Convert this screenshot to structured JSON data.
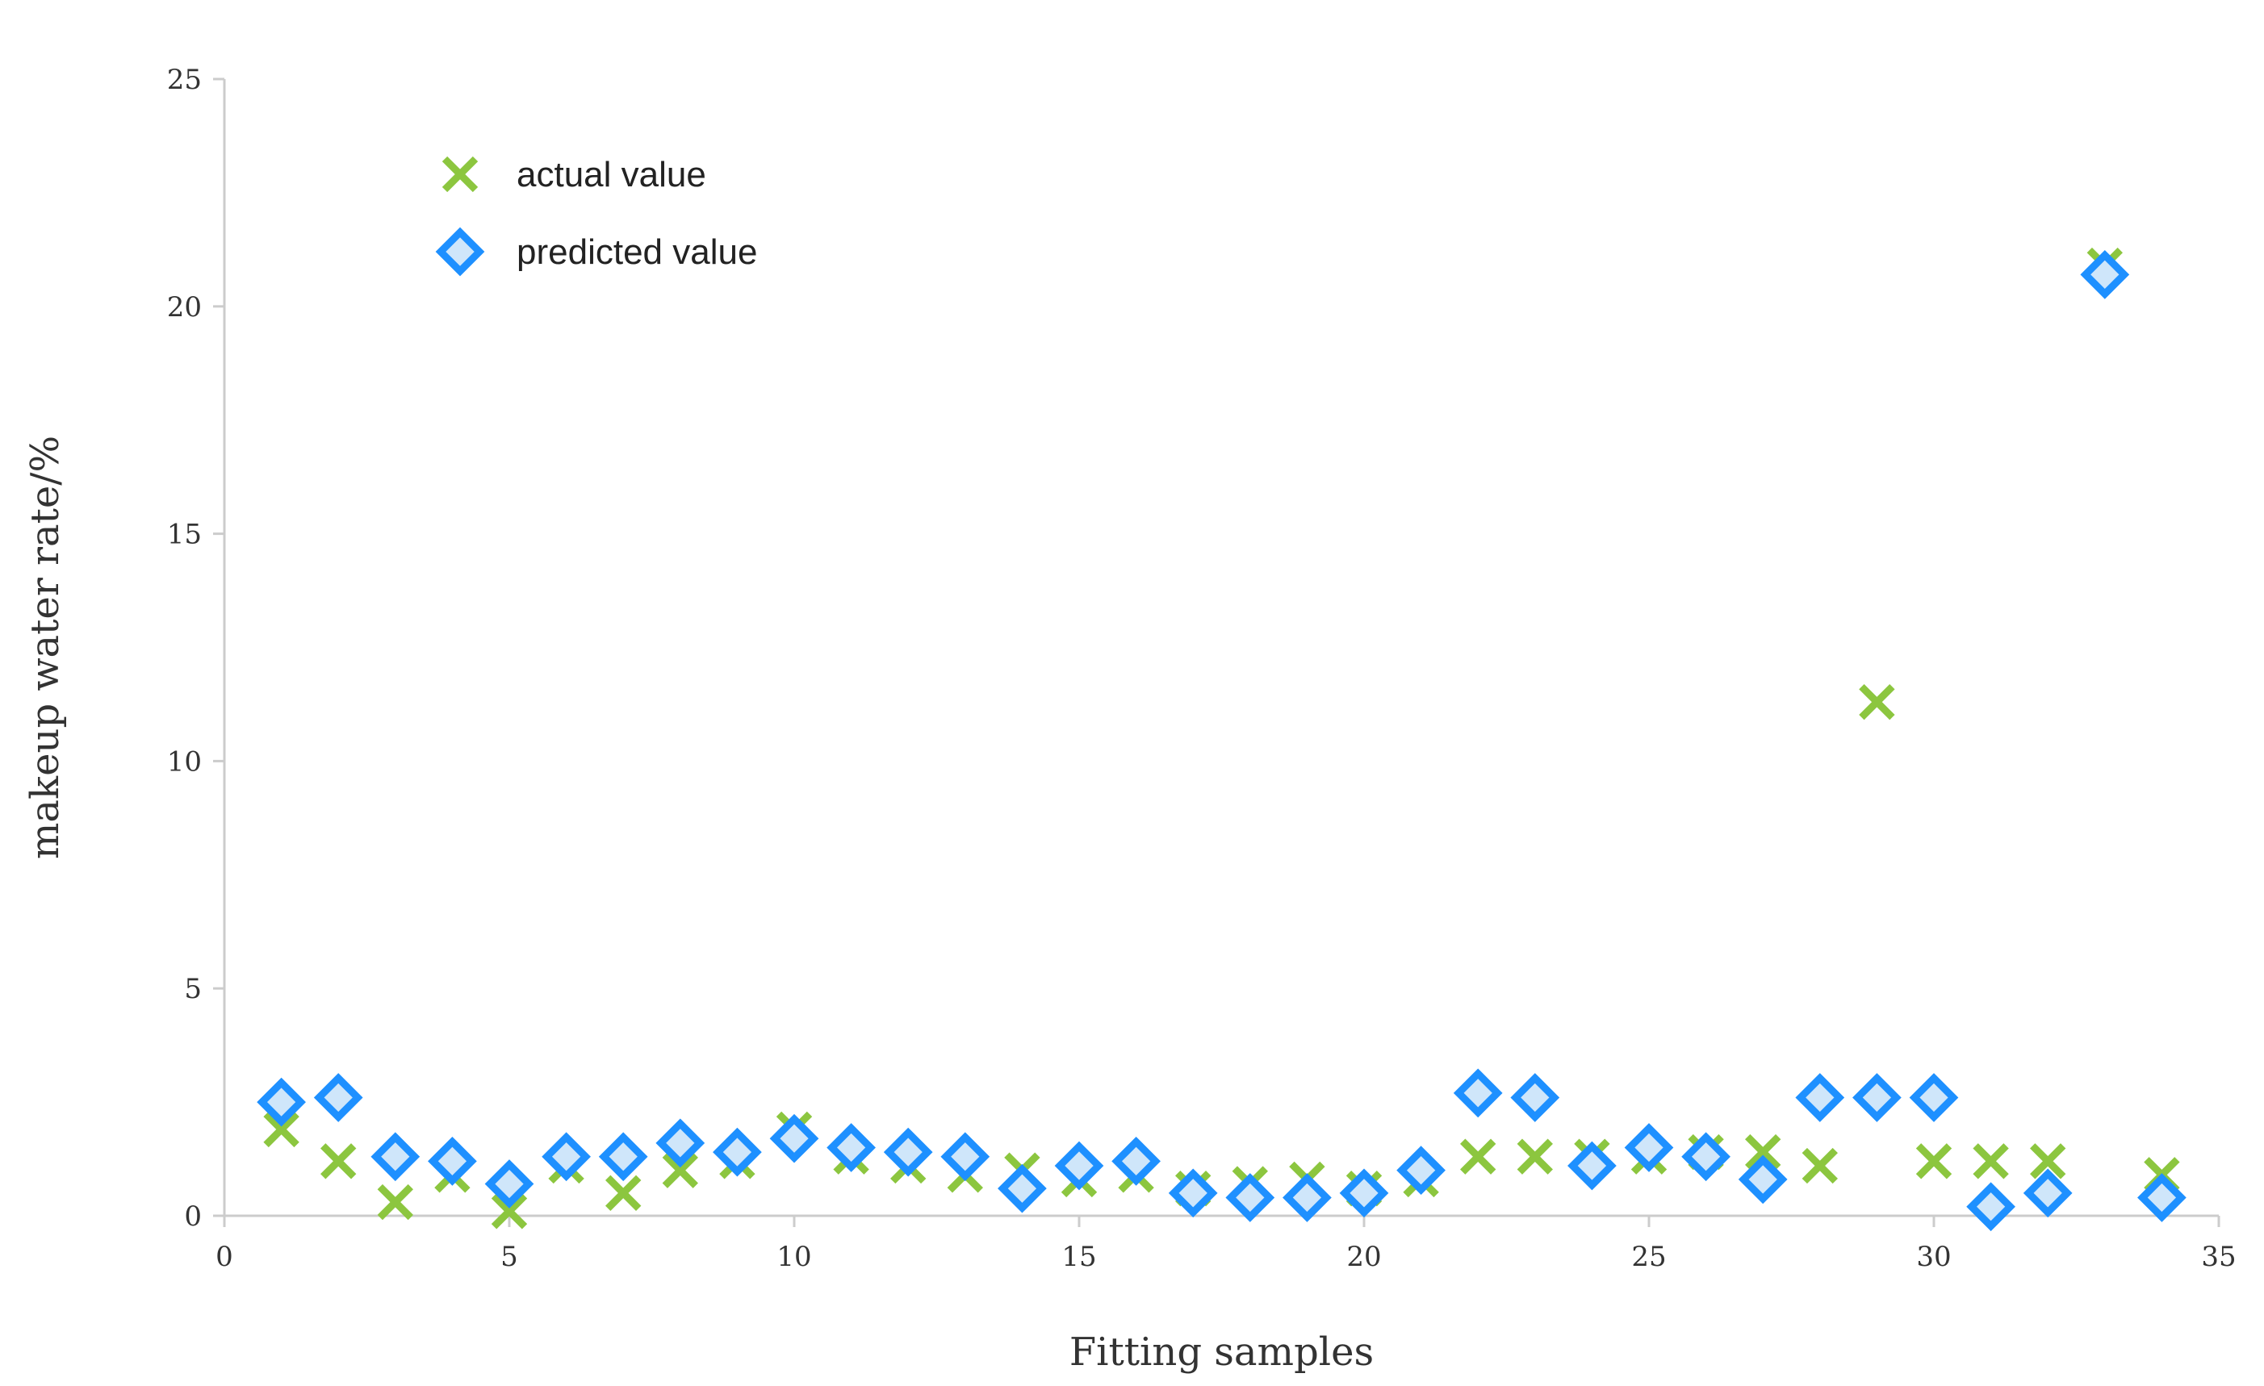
{
  "chart_data": {
    "type": "scatter",
    "xlabel": "Fitting samples",
    "ylabel": "makeup water rate/%",
    "xlim": [
      0,
      35
    ],
    "ylim": [
      0,
      25
    ],
    "x_ticks": [
      "0",
      "5",
      "10",
      "15",
      "20",
      "25",
      "30",
      "35"
    ],
    "y_ticks": [
      "0",
      "5",
      "10",
      "15",
      "20",
      "25"
    ],
    "grid": false,
    "legend_position": "top-left",
    "series": [
      {
        "name": "actual value",
        "marker": "x",
        "color": "#8CC63F",
        "x": [
          1,
          2,
          3,
          4,
          5,
          6,
          7,
          8,
          9,
          10,
          11,
          12,
          13,
          14,
          15,
          16,
          17,
          18,
          19,
          20,
          21,
          22,
          23,
          24,
          25,
          26,
          27,
          28,
          29,
          30,
          31,
          32,
          33,
          34
        ],
        "y": [
          1.9,
          1.2,
          0.3,
          0.9,
          0.1,
          1.1,
          0.5,
          1.0,
          1.2,
          1.9,
          1.3,
          1.1,
          0.9,
          1.0,
          0.8,
          0.9,
          0.6,
          0.7,
          0.8,
          0.6,
          0.8,
          1.3,
          1.3,
          1.3,
          1.3,
          1.4,
          1.4,
          1.1,
          11.3,
          1.2,
          1.2,
          1.2,
          20.9,
          0.9
        ]
      },
      {
        "name": "predicted value",
        "marker": "diamond",
        "color": "#1E90FF",
        "fill": "#CFE6FA",
        "x": [
          1,
          2,
          3,
          4,
          5,
          6,
          7,
          8,
          9,
          10,
          11,
          12,
          13,
          14,
          15,
          16,
          17,
          18,
          19,
          20,
          21,
          22,
          23,
          24,
          25,
          26,
          27,
          28,
          29,
          30,
          31,
          32,
          33,
          34
        ],
        "y": [
          2.5,
          2.6,
          1.3,
          1.2,
          0.7,
          1.3,
          1.3,
          1.6,
          1.4,
          1.7,
          1.5,
          1.4,
          1.3,
          0.6,
          1.1,
          1.2,
          0.5,
          0.4,
          0.4,
          0.5,
          1.0,
          2.7,
          2.6,
          1.1,
          1.5,
          1.3,
          0.8,
          2.6,
          2.6,
          2.6,
          0.2,
          0.5,
          20.7,
          0.4
        ]
      }
    ]
  }
}
